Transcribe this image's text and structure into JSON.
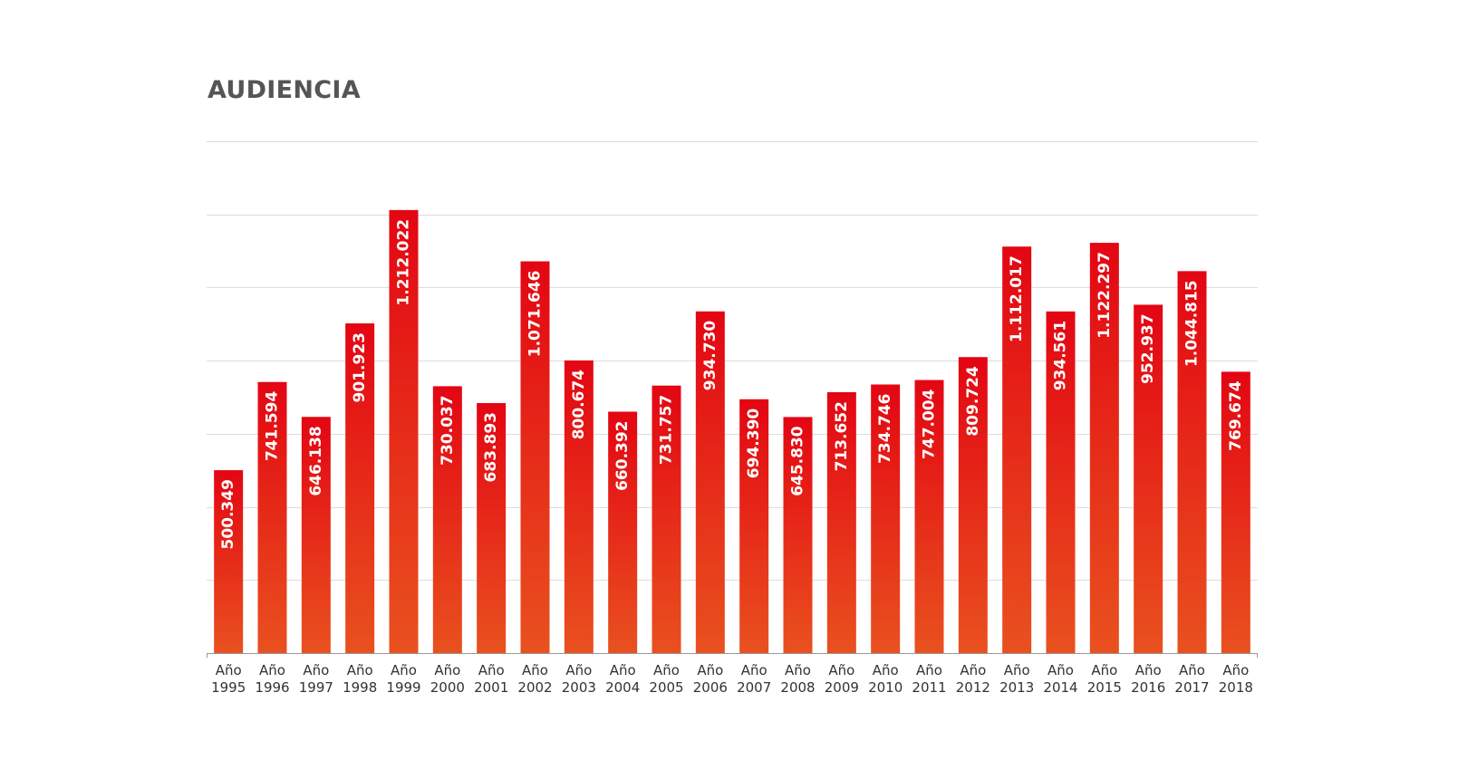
{
  "colors": {
    "bar_top": "#e30613",
    "bar_bottom": "#e9511f",
    "grid": "#dddddd",
    "title": "#555555"
  },
  "chart_data": {
    "type": "bar",
    "title": "AUDIENCIA",
    "xlabel": "",
    "ylabel": "",
    "ylim": [
      0,
      1400000
    ],
    "grid": true,
    "y_tick_labels_shown": false,
    "categories": [
      [
        "Año",
        "1995"
      ],
      [
        "Año",
        "1996"
      ],
      [
        "Año",
        "1997"
      ],
      [
        "Año",
        "1998"
      ],
      [
        "Año",
        "1999"
      ],
      [
        "Año",
        "2000"
      ],
      [
        "Año",
        "2001"
      ],
      [
        "Año",
        "2002"
      ],
      [
        "Año",
        "2003"
      ],
      [
        "Año",
        "2004"
      ],
      [
        "Año",
        "2005"
      ],
      [
        "Año",
        "2006"
      ],
      [
        "Año",
        "2007"
      ],
      [
        "Año",
        "2008"
      ],
      [
        "Año",
        "2009"
      ],
      [
        "Año",
        "2010"
      ],
      [
        "Año",
        "2011"
      ],
      [
        "Año",
        "2012"
      ],
      [
        "Año",
        "2013"
      ],
      [
        "Año",
        "2014"
      ],
      [
        "Año",
        "2015"
      ],
      [
        "Año",
        "2016"
      ],
      [
        "Año",
        "2017"
      ],
      [
        "Año",
        "2018"
      ]
    ],
    "values": [
      500349,
      741594,
      646138,
      901923,
      1212022,
      730037,
      683893,
      1071646,
      800674,
      660392,
      731757,
      934730,
      694390,
      645830,
      713652,
      734746,
      747004,
      809724,
      1112017,
      934561,
      1122297,
      952937,
      1044815,
      769674
    ],
    "value_labels": [
      "500.349",
      "741.594",
      "646.138",
      "901.923",
      "1.212.022",
      "730.037",
      "683.893",
      "1.071.646",
      "800.674",
      "660.392",
      "731.757",
      "934.730",
      "694.390",
      "645.830",
      "713.652",
      "734.746",
      "747.004",
      "809.724",
      "1.112.017",
      "934.561",
      "1.122.297",
      "952.937",
      "1.044.815",
      "769.674"
    ]
  }
}
